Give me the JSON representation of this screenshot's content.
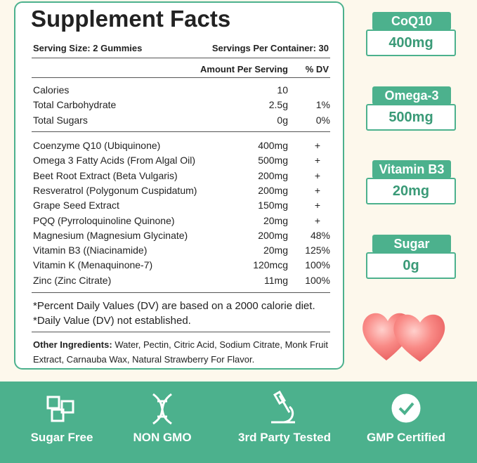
{
  "facts": {
    "title": "Supplement Facts",
    "serving_size": "Serving Size: 2 Gummies",
    "servings_per_container": "Servings Per Container: 30",
    "header": {
      "amount": "Amount Per Serving",
      "dv": "% DV"
    },
    "groups": [
      [
        {
          "name": "Calories",
          "amount": "10"
        },
        {
          "name": "Total Carbohydrate",
          "amount": "2.5g",
          "dv": "1%"
        },
        {
          "name": "Total Sugars",
          "amount": "0g",
          "dv": "0%"
        }
      ],
      [
        {
          "name": "Coenzyme Q10 (Ubiquinone)",
          "amount": "400mg",
          "dv": "+"
        },
        {
          "name": "Omega 3 Fatty Acids (From Algal Oil)",
          "amount": "500mg",
          "dv": "+"
        },
        {
          "name": "Beet Root Extract (Beta Vulgaris)",
          "amount": "200mg",
          "dv": "+"
        },
        {
          "name": "Resveratrol (Polygonum Cuspidatum)",
          "amount": "200mg",
          "dv": "+"
        },
        {
          "name": "Grape Seed Extract",
          "amount": "150mg",
          "dv": "+"
        },
        {
          "name": "PQQ (Pyrroloquinoline Quinone)",
          "amount": "20mg",
          "dv": "+"
        },
        {
          "name": "Magnesium (Magnesium Glycinate)",
          "amount": "200mg",
          "dv": "48%"
        },
        {
          "name": "Vitamin B3 ((Niacinamide)",
          "amount": "20mg",
          "dv": "125%"
        },
        {
          "name": "Vitamin K (Menaquinone-7)",
          "amount": "120mcg",
          "dv": "100%"
        },
        {
          "name": "Zinc (Zinc Citrate)",
          "amount": "11mg",
          "dv": "100%"
        }
      ]
    ],
    "footnotes": [
      "*Percent Daily Values (DV) are based on a 2000 calorie diet.",
      "*Daily Value (DV) not established."
    ],
    "other_ingredients": {
      "label": "Other Ingredients:",
      "text": "Water, Pectin, Citric Acid, Sodium Citrate, Monk Fruit Extract, Carnauba Wax, Natural Strawberry For Flavor."
    }
  },
  "badges": [
    {
      "label": "CoQ10",
      "value": "400mg"
    },
    {
      "label": "Omega-3",
      "value": "500mg"
    },
    {
      "label": "Vitamin B3",
      "value": "20mg"
    },
    {
      "label": "Sugar",
      "value": "0g"
    }
  ],
  "features": [
    "Sugar Free",
    "NON GMO",
    "3rd Party Tested",
    "GMP Certified"
  ]
}
